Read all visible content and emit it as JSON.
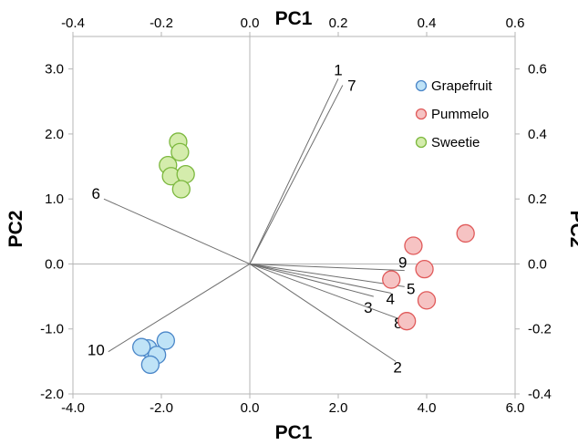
{
  "chart_data": {
    "type": "scatter",
    "subtype": "biplot",
    "title": "",
    "xlabel_bottom": "PC1",
    "xlabel_top": "PC1",
    "ylabel_left": "PC2",
    "ylabel_right": "PC2",
    "score_axes": {
      "xlim": [
        -4.0,
        6.0
      ],
      "ylim": [
        -2.0,
        3.5
      ],
      "xticks": [
        -4.0,
        -2.0,
        0.0,
        2.0,
        4.0,
        6.0
      ],
      "xtick_labels": [
        "-4.0",
        "-2.0",
        "0.0",
        "2.0",
        "4.0",
        "6.0"
      ],
      "yticks": [
        -2.0,
        -1.0,
        0.0,
        1.0,
        2.0,
        3.0
      ],
      "ytick_labels": [
        "-2.0",
        "-1.0",
        "0.0",
        "1.0",
        "2.0",
        "3.0"
      ]
    },
    "loading_axes": {
      "xlim": [
        -0.4,
        0.6
      ],
      "ylim": [
        -0.4,
        0.7
      ],
      "xticks": [
        -0.4,
        -0.2,
        0.0,
        0.2,
        0.4,
        0.6
      ],
      "xtick_labels": [
        "-0.4",
        "-0.2",
        "0.0",
        "0.2",
        "0.4",
        "0.6"
      ],
      "yticks": [
        -0.4,
        -0.2,
        0.0,
        0.2,
        0.4,
        0.6
      ],
      "ytick_labels": [
        "-0.4",
        "-0.2",
        "0.0",
        "0.2",
        "0.4",
        "0.6"
      ]
    },
    "grid": false,
    "legend_position": "top-right",
    "series": [
      {
        "name": "Grapefruit",
        "fill": "#bfe3f7",
        "stroke": "#4a86c8",
        "points": [
          {
            "x": -2.3,
            "y": -1.3
          },
          {
            "x": -2.1,
            "y": -1.4
          },
          {
            "x": -1.9,
            "y": -1.18
          },
          {
            "x": -2.45,
            "y": -1.28
          },
          {
            "x": -2.25,
            "y": -1.55
          }
        ]
      },
      {
        "name": "Pummelo",
        "fill": "#f6c3c3",
        "stroke": "#e05a5a",
        "points": [
          {
            "x": 3.7,
            "y": 0.28
          },
          {
            "x": 4.88,
            "y": 0.47
          },
          {
            "x": 3.95,
            "y": -0.08
          },
          {
            "x": 3.2,
            "y": -0.24
          },
          {
            "x": 4.0,
            "y": -0.56
          },
          {
            "x": 3.55,
            "y": -0.88
          }
        ]
      },
      {
        "name": "Sweetie",
        "fill": "#d4ecac",
        "stroke": "#7cb83e",
        "points": [
          {
            "x": -1.62,
            "y": 1.88
          },
          {
            "x": -1.58,
            "y": 1.72
          },
          {
            "x": -1.85,
            "y": 1.52
          },
          {
            "x": -1.78,
            "y": 1.35
          },
          {
            "x": -1.45,
            "y": 1.38
          },
          {
            "x": -1.55,
            "y": 1.15
          }
        ]
      }
    ],
    "loadings": [
      {
        "label": "1",
        "x": 0.2,
        "y": 0.57
      },
      {
        "label": "7",
        "x": 0.21,
        "y": 0.55
      },
      {
        "label": "6",
        "x": -0.33,
        "y": 0.2
      },
      {
        "label": "9",
        "x": 0.35,
        "y": -0.02
      },
      {
        "label": "5",
        "x": 0.35,
        "y": -0.07
      },
      {
        "label": "4",
        "x": 0.32,
        "y": -0.09
      },
      {
        "label": "3",
        "x": 0.28,
        "y": -0.1
      },
      {
        "label": "8",
        "x": 0.34,
        "y": -0.17
      },
      {
        "label": "2",
        "x": 0.33,
        "y": -0.3
      },
      {
        "label": "10",
        "x": -0.32,
        "y": -0.27
      }
    ]
  }
}
